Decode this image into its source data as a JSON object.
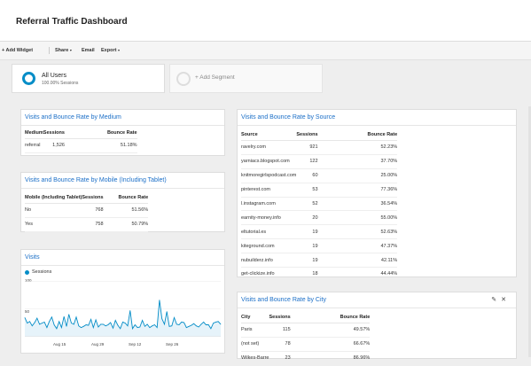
{
  "header": {
    "title": "Referral Traffic Dashboard"
  },
  "toolbar": {
    "add_widget": "+ Add Widget",
    "share": "Share",
    "email": "Email",
    "export": "Export",
    "caret": "▾"
  },
  "segments": {
    "active": {
      "name": "All Users",
      "sub": "100.00% Sessions"
    },
    "add_label": "+ Add Segment"
  },
  "medium_card": {
    "title": "Visits and Bounce Rate by Medium",
    "headers": [
      "Medium",
      "Sessions",
      "Bounce Rate"
    ],
    "rows": [
      [
        "referral",
        "1,526",
        "51.18%"
      ]
    ]
  },
  "mobile_card": {
    "title": "Visits and Bounce Rate by Mobile (Including Tablet)",
    "headers": [
      "Mobile (Including Tablet)",
      "Sessions",
      "Bounce Rate"
    ],
    "rows": [
      [
        "No",
        "768",
        "51.56%"
      ],
      [
        "Yes",
        "758",
        "50.79%"
      ]
    ]
  },
  "source_card": {
    "title": "Visits and Bounce Rate by Source",
    "headers": [
      "Source",
      "Sessions",
      "Bounce Rate"
    ],
    "rows": [
      [
        "ravelry.com",
        "921",
        "52.23%"
      ],
      [
        "yarniacs.blogspot.com",
        "122",
        "37.70%"
      ],
      [
        "knitmoregirlspodcast.com",
        "60",
        "25.00%"
      ],
      [
        "pinterest.com",
        "53",
        "77.36%"
      ],
      [
        "l.instagram.com",
        "52",
        "36.54%"
      ],
      [
        "earnity-money.info",
        "20",
        "55.00%"
      ],
      [
        "eltutorial.es",
        "19",
        "52.63%"
      ],
      [
        "kiteground.com",
        "19",
        "47.37%"
      ],
      [
        "nubuilderz.info",
        "19",
        "42.11%"
      ],
      [
        "get-clickize.info",
        "18",
        "44.44%"
      ]
    ]
  },
  "city_card": {
    "title": "Visits and Bounce Rate by City",
    "edit_icon": "pencil-icon",
    "close_icon": "close-icon",
    "headers": [
      "City",
      "Sessions",
      "Bounce Rate"
    ],
    "rows": [
      [
        "Paris",
        "115",
        "49.57%"
      ],
      [
        "(not set)",
        "78",
        "66.67%"
      ],
      [
        "Wilkes-Barre",
        "23",
        "86.96%"
      ]
    ]
  },
  "visits_card": {
    "title": "Visits"
  },
  "colors": {
    "accent": "#058dc7",
    "link": "#1a6ec7"
  },
  "chart_data": {
    "type": "area",
    "series": [
      {
        "name": "Sessions",
        "values": [
          34,
          24,
          27,
          19,
          25,
          33,
          22,
          24,
          26,
          16,
          27,
          35,
          21,
          14,
          27,
          16,
          36,
          18,
          40,
          24,
          22,
          35,
          19,
          16,
          18,
          21,
          20,
          31,
          16,
          30,
          17,
          22,
          22,
          19,
          21,
          25,
          15,
          29,
          20,
          14,
          26,
          24,
          19,
          47,
          14,
          21,
          16,
          17,
          29,
          18,
          22,
          16,
          19,
          21,
          16,
          66,
          32,
          22,
          45,
          18,
          19,
          34,
          22,
          21,
          26,
          25,
          16,
          18,
          20,
          23,
          19,
          17,
          22,
          26,
          21,
          21,
          14,
          24,
          26,
          27,
          22
        ]
      }
    ],
    "y_ticks": [
      "100",
      "50"
    ],
    "x_ticks": [
      "Aug 15",
      "Aug 29",
      "Sep 12",
      "Sep 26"
    ],
    "ylim": [
      0,
      100
    ]
  }
}
